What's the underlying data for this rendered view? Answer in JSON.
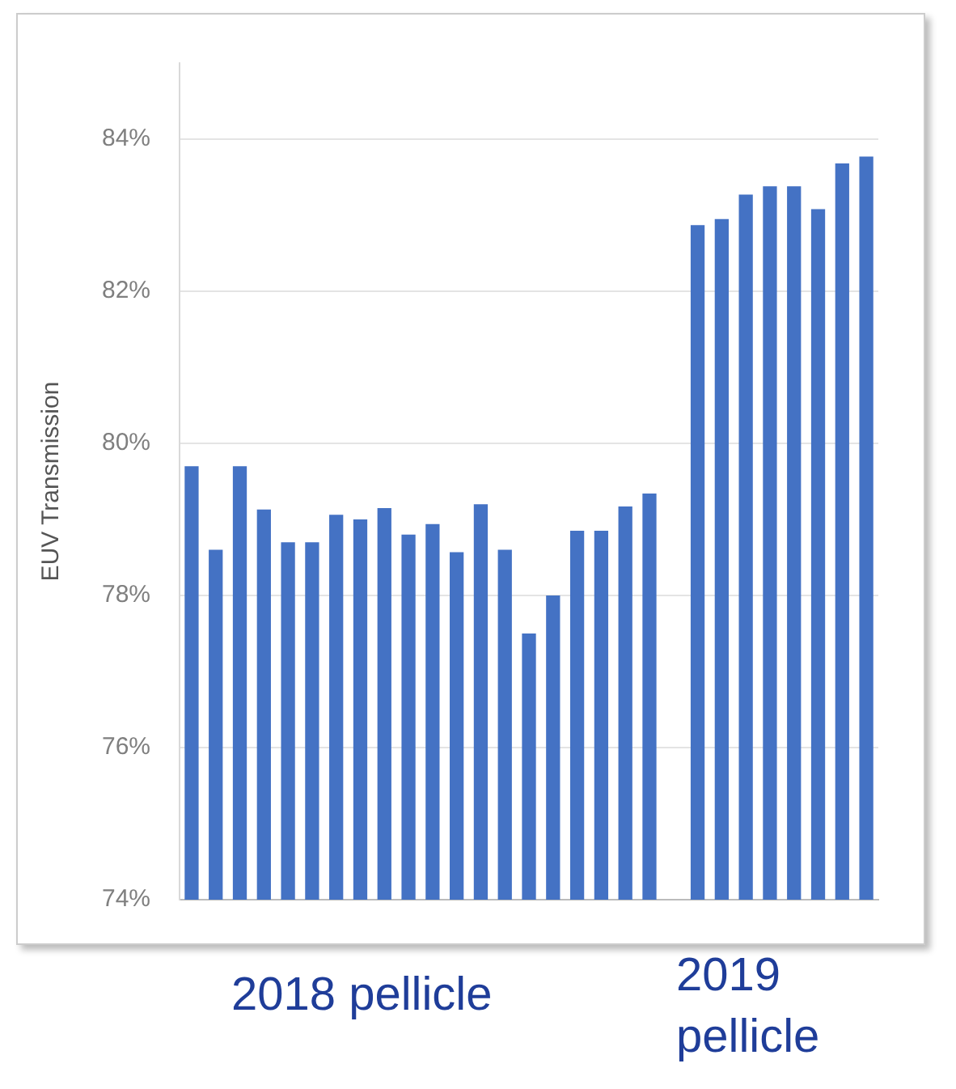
{
  "chart_data": {
    "type": "bar",
    "ylabel": "EUV Transmission",
    "categories": [
      null,
      null,
      null,
      null,
      null,
      null,
      null,
      null,
      null,
      null,
      null,
      null,
      null,
      null,
      null,
      null,
      null,
      null,
      null,
      null,
      null,
      null,
      null,
      null,
      null,
      null,
      null,
      null,
      null
    ],
    "values": [
      79.7,
      78.6,
      79.7,
      79.13,
      78.7,
      78.7,
      79.06,
      79.0,
      79.15,
      78.8,
      78.94,
      78.57,
      79.2,
      78.6,
      77.5,
      78.0,
      78.85,
      78.85,
      79.17,
      79.34,
      null,
      82.87,
      82.95,
      83.27,
      83.38,
      83.38,
      83.08,
      83.68,
      83.77
    ],
    "color": "#4472c4",
    "ylim": [
      74,
      85
    ],
    "yticks": [
      {
        "value": 74,
        "label": "74%"
      },
      {
        "value": 76,
        "label": "76%"
      },
      {
        "value": 78,
        "label": "78%"
      },
      {
        "value": 80,
        "label": "80%"
      },
      {
        "value": 82,
        "label": "82%"
      },
      {
        "value": 84,
        "label": "84%"
      }
    ],
    "grid": "y",
    "annotations": [
      "2018 pellicle",
      "2019 pellicle"
    ]
  }
}
